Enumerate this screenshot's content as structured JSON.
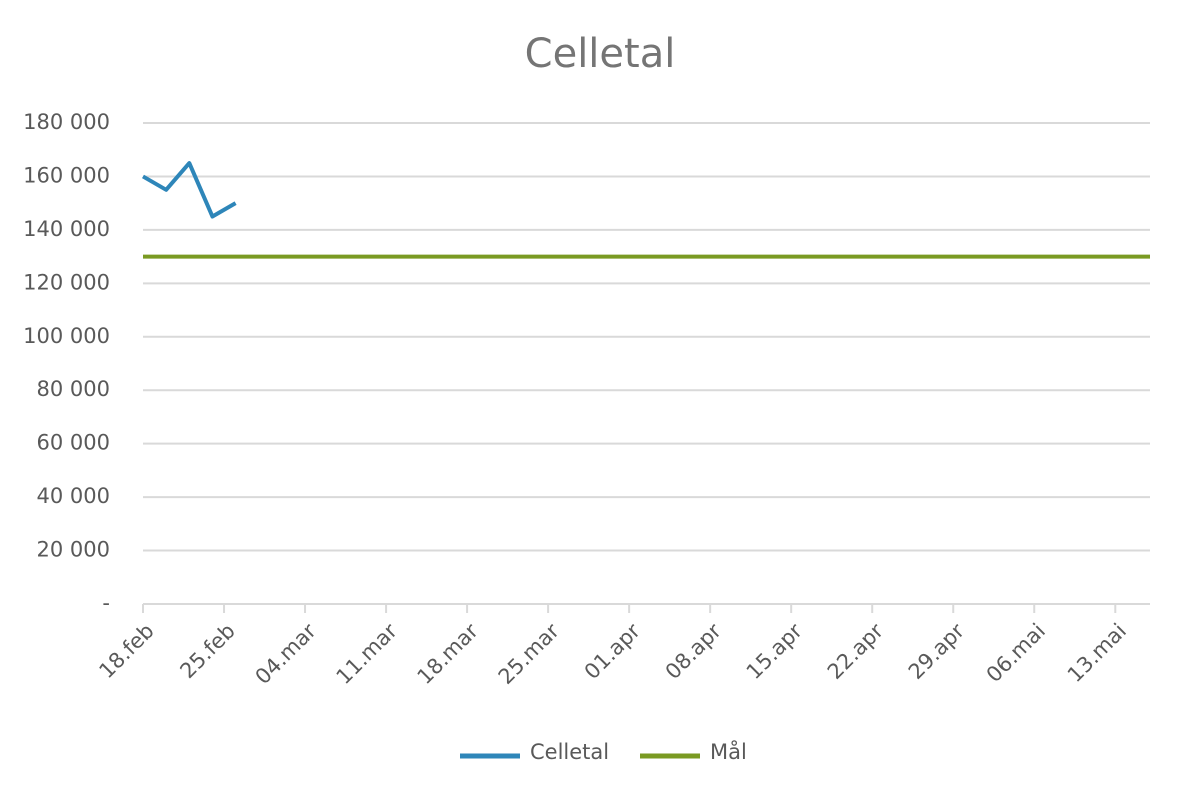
{
  "chart_data": {
    "type": "line",
    "title": "Celletal",
    "series": [
      {
        "name": "Celletal",
        "color": "#2e86b9",
        "x": [
          "18.feb",
          "20.feb",
          "22.feb",
          "24.feb",
          "26.feb"
        ],
        "values": [
          160000,
          155000,
          165000,
          145000,
          150000
        ]
      },
      {
        "name": "Mål",
        "color": "#7a9a22",
        "x": [
          "18.feb",
          "16.mai"
        ],
        "values": [
          130000,
          130000
        ]
      }
    ],
    "xlim": [
      "18.feb",
      "16.mai"
    ],
    "xticks": [
      "18.feb",
      "25.feb",
      "04.mar",
      "11.mar",
      "18.mar",
      "25.mar",
      "01.apr",
      "08.apr",
      "15.apr",
      "22.apr",
      "29.apr",
      "06.mai",
      "13.mai"
    ],
    "ylim": [
      0,
      180000
    ],
    "yticks": [
      {
        "value": 0,
        "label": "-"
      },
      {
        "value": 20000,
        "label": "20 000"
      },
      {
        "value": 40000,
        "label": "40 000"
      },
      {
        "value": 60000,
        "label": "60 000"
      },
      {
        "value": 80000,
        "label": "80 000"
      },
      {
        "value": 100000,
        "label": "100 000"
      },
      {
        "value": 120000,
        "label": "120 000"
      },
      {
        "value": 140000,
        "label": "140 000"
      },
      {
        "value": 160000,
        "label": "160 000"
      },
      {
        "value": 180000,
        "label": "180 000"
      }
    ],
    "grid": true,
    "legend": "bottom"
  }
}
